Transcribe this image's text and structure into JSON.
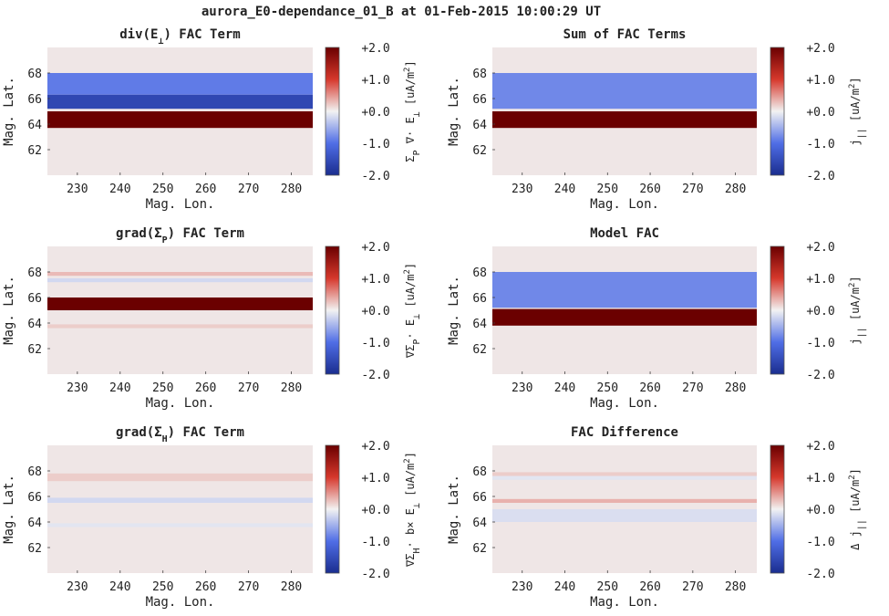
{
  "figure": {
    "suptitle": "aurora_E0-dependance_01_B at 01-Feb-2015 10:00:29 UT",
    "xlabel": "Mag. Lon.",
    "ylabel": "Mag. Lat."
  },
  "colormap": {
    "name": "blue-white-red",
    "low": "#1a2d8f",
    "mid": "#f2f2f2",
    "high": "#6b0000",
    "background": "#efe6e6"
  },
  "chart_data": [
    {
      "id": "div-e-perp",
      "type": "heatmap",
      "title": "div(E⊥) FAC Term",
      "title_parts": {
        "pre": "div(E",
        "sub": "⊥",
        "post": ") FAC Term"
      },
      "xlabel": "Mag. Lon.",
      "ylabel": "Mag. Lat.",
      "xlim": [
        223,
        285
      ],
      "ylim": [
        60,
        70
      ],
      "xticks": [
        "230",
        "240",
        "250",
        "260",
        "270",
        "280"
      ],
      "yticks": [
        "62",
        "64",
        "66",
        "68"
      ],
      "clim": [
        -2,
        2
      ],
      "cticks": [
        "+2.0",
        "+1.0",
        "+0.0",
        "-1.0",
        "-2.0"
      ],
      "cbar_label": "Σₚ ∇· E⊥ [uA/m²]",
      "cbar_label_parts": {
        "pre": "Σ",
        "sub": "P",
        "post": " ∇· E",
        "sub2": "⊥",
        "post2": " [uA/m",
        "sup": "2",
        "end": "]"
      },
      "bands": [
        {
          "lat_min": 66.3,
          "lat_max": 68.0,
          "value": -0.9
        },
        {
          "lat_min": 65.2,
          "lat_max": 66.3,
          "value": -1.6
        },
        {
          "lat_min": 63.7,
          "lat_max": 65.0,
          "value": 2.2
        }
      ]
    },
    {
      "id": "sum-fac",
      "type": "heatmap",
      "title": "Sum of FAC Terms",
      "xlabel": "Mag. Lon.",
      "ylabel": "Mag. Lat.",
      "xlim": [
        223,
        285
      ],
      "ylim": [
        60,
        70
      ],
      "xticks": [
        "230",
        "240",
        "250",
        "260",
        "270",
        "280"
      ],
      "yticks": [
        "62",
        "64",
        "66",
        "68"
      ],
      "clim": [
        -2,
        2
      ],
      "cticks": [
        "+2.0",
        "+1.0",
        "+0.0",
        "-1.0",
        "-2.0"
      ],
      "cbar_label": "j|| [uA/m²]",
      "cbar_label_parts": {
        "pre": "j",
        "sub": "||",
        "post": " [uA/m",
        "sup": "2",
        "end": "]"
      },
      "bands": [
        {
          "lat_min": 65.2,
          "lat_max": 68.0,
          "value": -0.8
        },
        {
          "lat_min": 63.7,
          "lat_max": 65.0,
          "value": 2.2
        }
      ]
    },
    {
      "id": "grad-sigma-p",
      "type": "heatmap",
      "title": "grad(ΣP) FAC Term",
      "title_parts": {
        "pre": "grad(Σ",
        "sub": "P",
        "post": ") FAC Term"
      },
      "xlabel": "Mag. Lon.",
      "ylabel": "Mag. Lat.",
      "xlim": [
        223,
        285
      ],
      "ylim": [
        60,
        70
      ],
      "xticks": [
        "230",
        "240",
        "250",
        "260",
        "270",
        "280"
      ],
      "yticks": [
        "62",
        "64",
        "66",
        "68"
      ],
      "clim": [
        -2,
        2
      ],
      "cticks": [
        "+2.0",
        "+1.0",
        "+0.0",
        "-1.0",
        "-2.0"
      ],
      "cbar_label": "∇Σₚ· E⊥ [uA/m²]",
      "cbar_label_parts": {
        "pre": "∇Σ",
        "sub": "P",
        "post": "· E",
        "sub2": "⊥",
        "post2": " [uA/m",
        "sup": "2",
        "end": "]"
      },
      "bands": [
        {
          "lat_min": 67.7,
          "lat_max": 68.0,
          "value": 0.3
        },
        {
          "lat_min": 67.2,
          "lat_max": 67.5,
          "value": -0.2
        },
        {
          "lat_min": 65.0,
          "lat_max": 66.0,
          "value": 2.4
        },
        {
          "lat_min": 63.6,
          "lat_max": 63.9,
          "value": 0.2
        }
      ]
    },
    {
      "id": "model-fac",
      "type": "heatmap",
      "title": "Model FAC",
      "xlabel": "Mag. Lon.",
      "ylabel": "Mag. Lat.",
      "xlim": [
        223,
        285
      ],
      "ylim": [
        60,
        70
      ],
      "xticks": [
        "230",
        "240",
        "250",
        "260",
        "270",
        "280"
      ],
      "yticks": [
        "62",
        "64",
        "66",
        "68"
      ],
      "clim": [
        -2,
        2
      ],
      "cticks": [
        "+2.0",
        "+1.0",
        "+0.0",
        "-1.0",
        "-2.0"
      ],
      "cbar_label": "j|| [uA/m²]",
      "cbar_label_parts": {
        "pre": "j",
        "sub": "||",
        "post": " [uA/m",
        "sup": "2",
        "end": "]"
      },
      "bands": [
        {
          "lat_min": 65.2,
          "lat_max": 68.0,
          "value": -0.8
        },
        {
          "lat_min": 63.8,
          "lat_max": 65.1,
          "value": 2.2
        }
      ]
    },
    {
      "id": "grad-sigma-h",
      "type": "heatmap",
      "title": "grad(ΣH) FAC Term",
      "title_parts": {
        "pre": "grad(Σ",
        "sub": "H",
        "post": ") FAC Term"
      },
      "xlabel": "Mag. Lon.",
      "ylabel": "Mag. Lat.",
      "xlim": [
        223,
        285
      ],
      "ylim": [
        60,
        70
      ],
      "xticks": [
        "230",
        "240",
        "250",
        "260",
        "270",
        "280"
      ],
      "yticks": [
        "62",
        "64",
        "66",
        "68"
      ],
      "clim": [
        -2,
        2
      ],
      "cticks": [
        "+2.0",
        "+1.0",
        "+0.0",
        "-1.0",
        "-2.0"
      ],
      "cbar_label": "∇ΣH· b× E⊥ [uA/m²]",
      "cbar_label_parts": {
        "pre": "∇Σ",
        "sub": "H",
        "post": "· b× E",
        "sub2": "⊥",
        "post2": " [uA/m",
        "sup": "2",
        "end": "]"
      },
      "bands": [
        {
          "lat_min": 67.2,
          "lat_max": 67.8,
          "value": 0.2
        },
        {
          "lat_min": 65.5,
          "lat_max": 65.9,
          "value": -0.2
        },
        {
          "lat_min": 63.6,
          "lat_max": 63.9,
          "value": -0.1
        }
      ]
    },
    {
      "id": "fac-diff",
      "type": "heatmap",
      "title": "FAC Difference",
      "xlabel": "Mag. Lon.",
      "ylabel": "Mag. Lat.",
      "xlim": [
        223,
        285
      ],
      "ylim": [
        60,
        70
      ],
      "xticks": [
        "230",
        "240",
        "250",
        "260",
        "270",
        "280"
      ],
      "yticks": [
        "62",
        "64",
        "66",
        "68"
      ],
      "clim": [
        -2,
        2
      ],
      "cticks": [
        "+2.0",
        "+1.0",
        "+0.0",
        "-1.0",
        "-2.0"
      ],
      "cbar_label": "Δ j|| [uA/m²]",
      "cbar_label_parts": {
        "pre": "Δ j",
        "sub": "||",
        "post": " [uA/m",
        "sup": "2",
        "end": "]"
      },
      "bands": [
        {
          "lat_min": 67.6,
          "lat_max": 67.9,
          "value": 0.2
        },
        {
          "lat_min": 67.3,
          "lat_max": 67.6,
          "value": -0.1
        },
        {
          "lat_min": 65.5,
          "lat_max": 65.8,
          "value": 0.35
        },
        {
          "lat_min": 64.0,
          "lat_max": 65.0,
          "value": -0.15
        }
      ]
    }
  ]
}
